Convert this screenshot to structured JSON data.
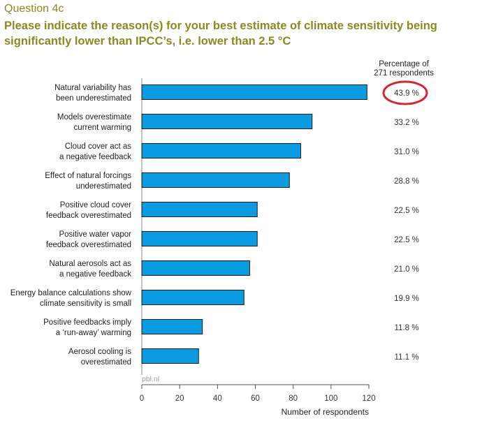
{
  "question_label": "Question 4c",
  "question_title": "Please indicate the reason(s) for your best estimate of climate sensitivity being significantly lower than IPCC’s, i.e. lower than 2.5 °C",
  "colors": {
    "bar": "#0a9be0",
    "bar_stroke": "#1a1a1a",
    "title": "#8a8a1e",
    "highlight_circle": "#e0202a"
  },
  "chart_data": {
    "type": "bar",
    "orientation": "horizontal",
    "categories": [
      [
        "Natural variability has",
        "been underestimated"
      ],
      [
        "Models overestimate",
        "current warming"
      ],
      [
        "Cloud cover act as",
        "a negative feedback"
      ],
      [
        "Effect of natural forcings",
        "underestimated"
      ],
      [
        "Positive cloud cover",
        "feedback overestimated"
      ],
      [
        "Positive water vapor",
        "feedback overestimated"
      ],
      [
        "Natural aerosols act as",
        "a negative feedback"
      ],
      [
        "Energy balance calculations show",
        "climate sensitivity is small"
      ],
      [
        "Positive feedbacks imply",
        "a ‘run-away’ warming"
      ],
      [
        "Aerosol cooling is",
        "overestimated"
      ]
    ],
    "values": [
      119,
      90,
      84,
      78,
      61,
      61,
      57,
      54,
      32,
      30
    ],
    "percent_labels": [
      "43.9 %",
      "33.2 %",
      "31.0 %",
      "28.8 %",
      "22.5 %",
      "22.5 %",
      "21.0 %",
      "19.9 %",
      "11.8 %",
      "11.1 %"
    ],
    "percent_header": [
      "Percentage of",
      "271 respondents"
    ],
    "highlighted_index": 0,
    "xlabel": "Number of respondents",
    "xlim": [
      0,
      120
    ],
    "xticks": [
      0,
      20,
      40,
      60,
      80,
      100,
      120
    ],
    "grid": false,
    "source": "pbl.nl"
  }
}
